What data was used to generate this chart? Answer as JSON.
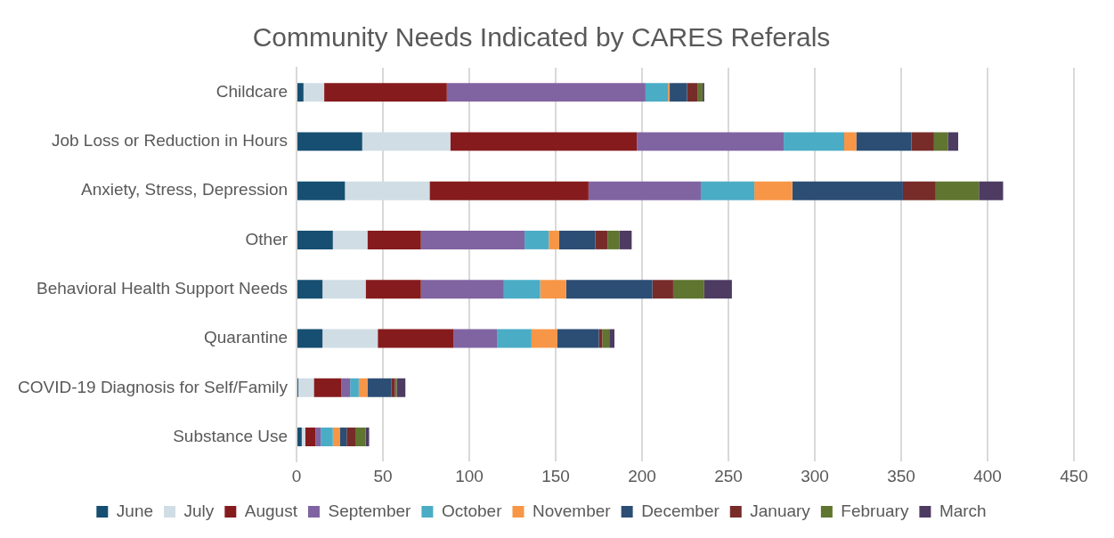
{
  "chart_data": {
    "type": "bar",
    "title": "Community Needs Indicated by CARES Referals",
    "orientation": "horizontal",
    "stacked": true,
    "categories": [
      "Childcare",
      "Job Loss or Reduction in Hours",
      "Anxiety, Stress, Depression",
      "Other",
      "Behavioral Health Support Needs",
      "Quarantine",
      "COVID-19 Diagnosis for Self/Family",
      "Substance Use"
    ],
    "series": [
      {
        "name": "June",
        "color": "#164f71",
        "values": [
          4,
          38,
          28,
          21,
          15,
          15,
          1,
          3
        ]
      },
      {
        "name": "July",
        "color": "#d0dde4",
        "values": [
          12,
          51,
          49,
          20,
          25,
          32,
          9,
          2
        ]
      },
      {
        "name": "August",
        "color": "#861b1d",
        "values": [
          71,
          108,
          92,
          31,
          32,
          44,
          16,
          6
        ]
      },
      {
        "name": "September",
        "color": "#8064a2",
        "values": [
          115,
          85,
          65,
          60,
          48,
          25,
          5,
          3
        ]
      },
      {
        "name": "October",
        "color": "#4bacc6",
        "values": [
          13,
          35,
          31,
          14,
          21,
          20,
          5,
          7
        ]
      },
      {
        "name": "November",
        "color": "#f79646",
        "values": [
          1,
          7,
          22,
          6,
          15,
          15,
          5,
          4
        ]
      },
      {
        "name": "December",
        "color": "#2c4e74",
        "values": [
          10,
          32,
          64,
          21,
          50,
          24,
          14,
          4
        ]
      },
      {
        "name": "January",
        "color": "#772c2a",
        "values": [
          6,
          13,
          19,
          7,
          12,
          2,
          2,
          5
        ]
      },
      {
        "name": "February",
        "color": "#5f7530",
        "values": [
          3,
          8,
          25,
          7,
          18,
          4,
          1,
          6
        ]
      },
      {
        "name": "March",
        "color": "#4d3b62",
        "values": [
          1,
          6,
          14,
          7,
          16,
          3,
          5,
          2
        ]
      }
    ],
    "xlim": [
      0,
      450
    ],
    "xticks": [
      0,
      50,
      100,
      150,
      200,
      250,
      300,
      350,
      400,
      450
    ],
    "grid": "x",
    "legend": "bottom"
  }
}
